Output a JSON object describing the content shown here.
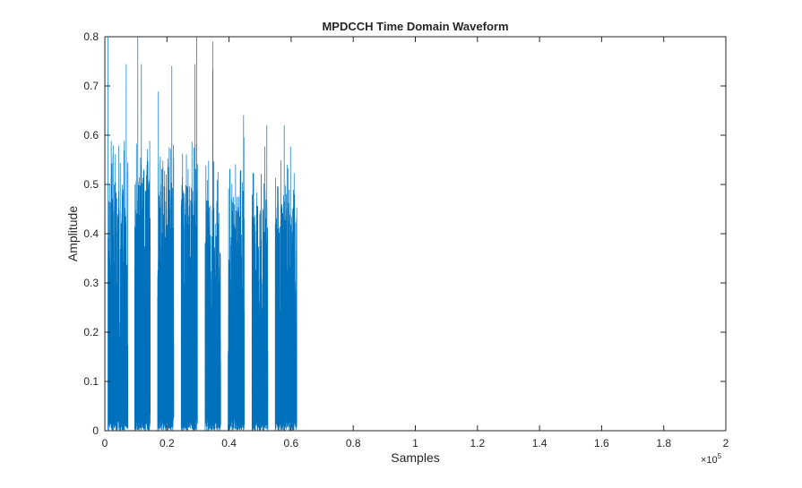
{
  "chart_data": {
    "type": "line",
    "title": "MPDCCH Time Domain Waveform",
    "xlabel": "Samples",
    "ylabel": "Amplitude",
    "xlim": [
      0,
      200000
    ],
    "ylim": [
      0,
      0.8
    ],
    "x_exponent_label": "×10",
    "x_exponent_power": "5",
    "x_ticks": [
      {
        "value": 0,
        "label": "0"
      },
      {
        "value": 20000,
        "label": "0.2"
      },
      {
        "value": 40000,
        "label": "0.4"
      },
      {
        "value": 60000,
        "label": "0.6"
      },
      {
        "value": 80000,
        "label": "0.8"
      },
      {
        "value": 100000,
        "label": "1"
      },
      {
        "value": 120000,
        "label": "1.2"
      },
      {
        "value": 140000,
        "label": "1.4"
      },
      {
        "value": 160000,
        "label": "1.6"
      },
      {
        "value": 180000,
        "label": "1.8"
      },
      {
        "value": 200000,
        "label": "2"
      }
    ],
    "y_ticks": [
      {
        "value": 0,
        "label": "0"
      },
      {
        "value": 0.1,
        "label": "0.1"
      },
      {
        "value": 0.2,
        "label": "0.2"
      },
      {
        "value": 0.3,
        "label": "0.3"
      },
      {
        "value": 0.4,
        "label": "0.4"
      },
      {
        "value": 0.5,
        "label": "0.5"
      },
      {
        "value": 0.6,
        "label": "0.6"
      },
      {
        "value": 0.7,
        "label": "0.7"
      },
      {
        "value": 0.8,
        "label": "0.8"
      }
    ],
    "grid": false,
    "line_color": "#0072BD",
    "series": [
      {
        "bursts": [
          {
            "x_start": 1000,
            "x_end": 7400,
            "peak": 0.8,
            "typical_max": 0.55
          },
          {
            "x_start": 9600,
            "x_end": 14600,
            "peak": 0.8,
            "typical_max": 0.56
          },
          {
            "x_start": 17000,
            "x_end": 22200,
            "peak": 0.74,
            "typical_max": 0.55
          },
          {
            "x_start": 24600,
            "x_end": 29800,
            "peak": 0.8,
            "typical_max": 0.55
          },
          {
            "x_start": 32300,
            "x_end": 37300,
            "peak": 0.79,
            "typical_max": 0.52
          },
          {
            "x_start": 39700,
            "x_end": 44900,
            "peak": 0.64,
            "typical_max": 0.52
          },
          {
            "x_start": 47400,
            "x_end": 52500,
            "peak": 0.62,
            "typical_max": 0.5
          },
          {
            "x_start": 54900,
            "x_end": 61800,
            "peak": 0.62,
            "typical_max": 0.52
          }
        ],
        "baseline": 0
      }
    ]
  }
}
